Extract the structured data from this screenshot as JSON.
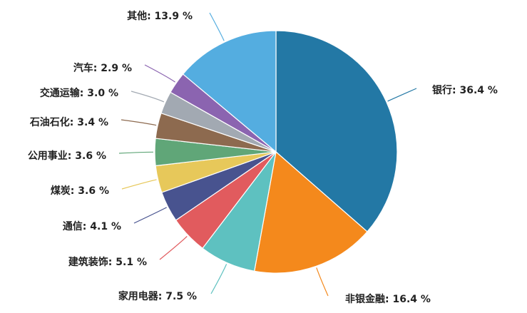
{
  "chart_data": {
    "type": "pie",
    "unit": "%",
    "slices": [
      {
        "label": "银行",
        "value": 36.4,
        "color": "#2378a5"
      },
      {
        "label": "非银金融",
        "value": 16.4,
        "color": "#f4891c"
      },
      {
        "label": "家用电器",
        "value": 7.5,
        "color": "#5ec1c0"
      },
      {
        "label": "建筑装饰",
        "value": 5.1,
        "color": "#e15b5e"
      },
      {
        "label": "通信",
        "value": 4.1,
        "color": "#48538f"
      },
      {
        "label": "煤炭",
        "value": 3.6,
        "color": "#e7c85a"
      },
      {
        "label": "公用事业",
        "value": 3.6,
        "color": "#60a678"
      },
      {
        "label": "石油石化",
        "value": 3.4,
        "color": "#8d6a4f"
      },
      {
        "label": "交通运输",
        "value": 3.0,
        "color": "#a2a9b2"
      },
      {
        "label": "汽车",
        "value": 2.9,
        "color": "#8b64b0"
      },
      {
        "label": "其他",
        "value": 13.9,
        "color": "#54ade0"
      }
    ]
  }
}
